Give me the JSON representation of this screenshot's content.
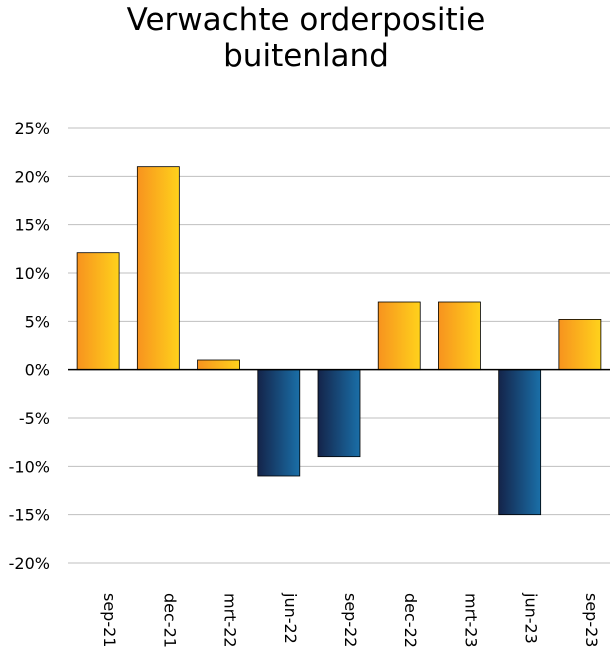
{
  "chart_data": {
    "type": "bar",
    "title_lines": [
      "Verwachte orderpositie",
      "buitenland"
    ],
    "categories": [
      "sep-21",
      "dec-21",
      "mrt-22",
      "jun-22",
      "sep-22",
      "dec-22",
      "mrt-23",
      "jun-23",
      "sep-23"
    ],
    "values": [
      12.1,
      21.0,
      1.0,
      -11.0,
      -9.0,
      7.0,
      7.0,
      -15.0,
      5.2
    ],
    "ylim": [
      -20,
      25
    ],
    "yticks": [
      25,
      20,
      15,
      10,
      5,
      0,
      -5,
      -10,
      -15,
      -20
    ],
    "ytick_labels": [
      "25%",
      "20%",
      "15%",
      "10%",
      "5%",
      "0%",
      "-5%",
      "-10%",
      "-15%",
      "-20%"
    ],
    "grid": true,
    "legend": "none",
    "colors": {
      "positive_start": "#f7931e",
      "positive_end": "#ffd21c",
      "negative_start": "#14244a",
      "negative_end": "#1a6fa8",
      "gridline": "#bfbfbf",
      "axis": "#000000"
    }
  }
}
